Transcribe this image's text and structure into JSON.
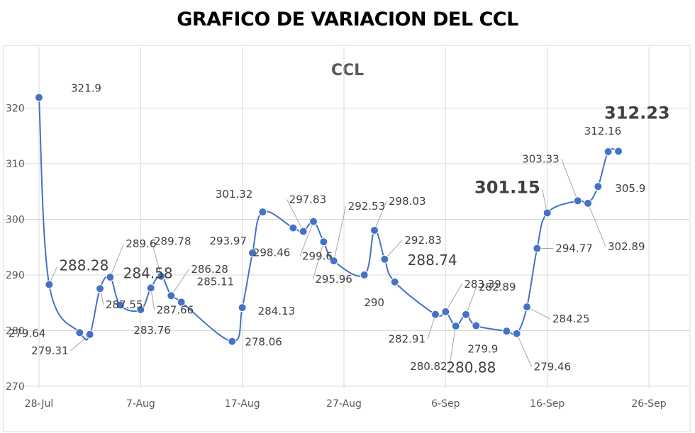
{
  "page": {
    "title": "GRAFICO DE VARIACION DEL CCL"
  },
  "chart_data": {
    "type": "line",
    "title": "CCL",
    "xlabel": "",
    "ylabel": "",
    "ylim": [
      270,
      320
    ],
    "yticks": [
      270,
      280,
      290,
      300,
      310,
      320
    ],
    "x_range": [
      "2023-07-28",
      "2023-09-26"
    ],
    "xticks": [
      {
        "date": "2023-07-28",
        "label": "28-Jul"
      },
      {
        "date": "2023-08-07",
        "label": "7-Aug"
      },
      {
        "date": "2023-08-17",
        "label": "17-Aug"
      },
      {
        "date": "2023-08-27",
        "label": "27-Aug"
      },
      {
        "date": "2023-09-06",
        "label": "6-Sep"
      },
      {
        "date": "2023-09-16",
        "label": "16-Sep"
      },
      {
        "date": "2023-09-26",
        "label": "26-Sep"
      }
    ],
    "grid": true,
    "series": [
      {
        "color": "#4472C4",
        "points": [
          {
            "x": "2023-07-28",
            "y": 321.9
          },
          {
            "x": "2023-07-29",
            "y": 288.28
          },
          {
            "x": "2023-08-01",
            "y": 279.64
          },
          {
            "x": "2023-08-02",
            "y": 279.31
          },
          {
            "x": "2023-08-03",
            "y": 287.55
          },
          {
            "x": "2023-08-04",
            "y": 289.6
          },
          {
            "x": "2023-08-05",
            "y": 284.58
          },
          {
            "x": "2023-08-07",
            "y": 283.76
          },
          {
            "x": "2023-08-08",
            "y": 287.66
          },
          {
            "x": "2023-08-09",
            "y": 289.78
          },
          {
            "x": "2023-08-10",
            "y": 286.28
          },
          {
            "x": "2023-08-11",
            "y": 285.11
          },
          {
            "x": "2023-08-16",
            "y": 278.06
          },
          {
            "x": "2023-08-17",
            "y": 284.13
          },
          {
            "x": "2023-08-18",
            "y": 293.97
          },
          {
            "x": "2023-08-19",
            "y": 301.32
          },
          {
            "x": "2023-08-22",
            "y": 298.46
          },
          {
            "x": "2023-08-23",
            "y": 297.83
          },
          {
            "x": "2023-08-24",
            "y": 299.6
          },
          {
            "x": "2023-08-25",
            "y": 295.96
          },
          {
            "x": "2023-08-26",
            "y": 292.53
          },
          {
            "x": "2023-08-29",
            "y": 290
          },
          {
            "x": "2023-08-30",
            "y": 298.03
          },
          {
            "x": "2023-08-31",
            "y": 292.83
          },
          {
            "x": "2023-09-01",
            "y": 288.74
          },
          {
            "x": "2023-09-05",
            "y": 282.91
          },
          {
            "x": "2023-09-06",
            "y": 283.39
          },
          {
            "x": "2023-09-07",
            "y": 280.82
          },
          {
            "x": "2023-09-08",
            "y": 282.89
          },
          {
            "x": "2023-09-09",
            "y": 280.88
          },
          {
            "x": "2023-09-12",
            "y": 279.9
          },
          {
            "x": "2023-09-13",
            "y": 279.46
          },
          {
            "x": "2023-09-14",
            "y": 284.25
          },
          {
            "x": "2023-09-15",
            "y": 294.77
          },
          {
            "x": "2023-09-16",
            "y": 301.15
          },
          {
            "x": "2023-09-19",
            "y": 303.33
          },
          {
            "x": "2023-09-20",
            "y": 302.89
          },
          {
            "x": "2023-09-21",
            "y": 305.9
          },
          {
            "x": "2023-09-22",
            "y": 312.16
          },
          {
            "x": "2023-09-23",
            "y": 312.23
          }
        ]
      }
    ],
    "data_labels": [
      {
        "text": "321.9",
        "i": 0
      },
      {
        "text": "288.28",
        "i": 1
      },
      {
        "text": "279.64",
        "i": 2
      },
      {
        "text": "279.31",
        "i": 3
      },
      {
        "text": "287.55",
        "i": 4
      },
      {
        "text": "289.6",
        "i": 5
      },
      {
        "text": "284.58",
        "i": 6
      },
      {
        "text": "283.76",
        "i": 7
      },
      {
        "text": "287.66",
        "i": 8
      },
      {
        "text": "289.78",
        "i": 9
      },
      {
        "text": "286.28",
        "i": 10
      },
      {
        "text": "285.11",
        "i": 11
      },
      {
        "text": "278.06",
        "i": 12
      },
      {
        "text": "284.13",
        "i": 13
      },
      {
        "text": "293.97",
        "i": 14
      },
      {
        "text": "301.32",
        "i": 15
      },
      {
        "text": "298.46",
        "i": 16
      },
      {
        "text": "297.83",
        "i": 17
      },
      {
        "text": "299.6",
        "i": 18
      },
      {
        "text": "295.96",
        "i": 19
      },
      {
        "text": "292.53",
        "i": 20
      },
      {
        "text": "290",
        "i": 21
      },
      {
        "text": "298.03",
        "i": 22
      },
      {
        "text": "292.83",
        "i": 23
      },
      {
        "text": "288.74",
        "i": 24
      },
      {
        "text": "282.91",
        "i": 25
      },
      {
        "text": "283.39",
        "i": 26
      },
      {
        "text": "280.82",
        "i": 27
      },
      {
        "text": "282.89",
        "i": 28
      },
      {
        "text": "280.88",
        "i": 29
      },
      {
        "text": "279.9",
        "i": 30
      },
      {
        "text": "279.46",
        "i": 31
      },
      {
        "text": "284.25",
        "i": 32
      },
      {
        "text": "294.77",
        "i": 33
      },
      {
        "text": "301.15",
        "i": 34
      },
      {
        "text": "303.33",
        "i": 35
      },
      {
        "text": "302.89",
        "i": 36
      },
      {
        "text": "305.9",
        "i": 37
      },
      {
        "text": "312.16",
        "i": 38
      },
      {
        "text": "312.23",
        "i": 39
      }
    ]
  }
}
